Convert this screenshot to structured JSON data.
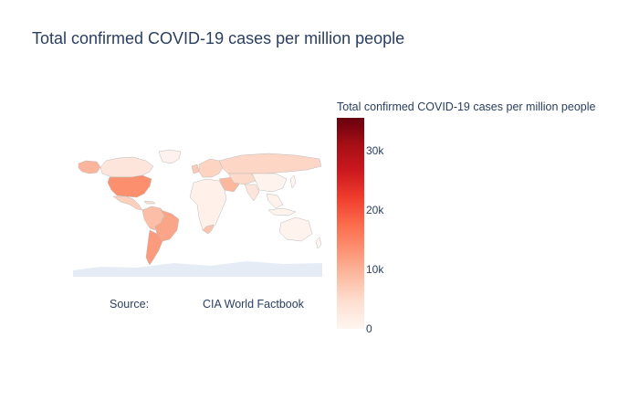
{
  "title": "Total confirmed COVID-19 cases per million people",
  "source": {
    "label": "Source:",
    "value": "CIA World Factbook"
  },
  "colorbar": {
    "title": "Total confirmed COVID-19 cases per million people",
    "min": 0,
    "max": 35500,
    "ticks": [
      {
        "value": 0,
        "label": "0"
      },
      {
        "value": 10000,
        "label": "10k"
      },
      {
        "value": 20000,
        "label": "20k"
      },
      {
        "value": 30000,
        "label": "30k"
      }
    ],
    "colorscale": [
      "#fff5f0",
      "#fee0d2",
      "#fcbba1",
      "#fc9272",
      "#fb6a4a",
      "#ef3b2c",
      "#cb181d",
      "#a50f15",
      "#67000d"
    ]
  },
  "map_style": {
    "ocean": "#ffffff",
    "land_border": "#bbbbbb",
    "antarctica": "#e5ecf6"
  }
}
